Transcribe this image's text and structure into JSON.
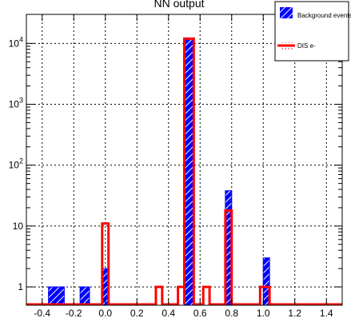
{
  "chart_data": {
    "type": "bar",
    "title": "NN output",
    "xlabel": "",
    "ylabel": "",
    "x_scale": "linear",
    "y_scale": "log",
    "xlim": [
      -0.5,
      1.5
    ],
    "ylim": [
      0.5,
      30000
    ],
    "grid": true,
    "legend_position": "top-right",
    "x_tick_labels": [
      "-0.4",
      "-0.2",
      "0.0",
      "0.2",
      "0.4",
      "0.6",
      "0.8",
      "1.0",
      "1.2",
      "1.4"
    ],
    "x_tick_values": [
      -0.4,
      -0.2,
      0.0,
      0.2,
      0.4,
      0.6,
      0.8,
      1.0,
      1.2,
      1.4
    ],
    "y_tick_values": [
      1,
      10,
      100,
      1000,
      10000
    ],
    "y_tick_labels": [
      {
        "base": "1",
        "exp": ""
      },
      {
        "base": "10",
        "exp": ""
      },
      {
        "base": "10",
        "exp": "2"
      },
      {
        "base": "10",
        "exp": "3"
      },
      {
        "base": "10",
        "exp": "4"
      }
    ],
    "series": [
      {
        "name": "Background events",
        "color": "#0000ff",
        "style": "hatched",
        "bins": [
          {
            "x0": -0.36,
            "x1": -0.26,
            "y": 1
          },
          {
            "x0": -0.16,
            "x1": -0.1,
            "y": 1
          },
          {
            "x0": -0.02,
            "x1": 0.02,
            "y": 2
          },
          {
            "x0": 0.5,
            "x1": 0.56,
            "y": 12000
          },
          {
            "x0": 0.76,
            "x1": 0.8,
            "y": 38
          },
          {
            "x0": 1.0,
            "x1": 1.04,
            "y": 3
          }
        ]
      },
      {
        "name": "DIS e-",
        "color": "#ff0000",
        "style": "outline",
        "bins": [
          {
            "x0": -0.02,
            "x1": 0.02,
            "y": 11
          },
          {
            "x0": 0.32,
            "x1": 0.36,
            "y": 1
          },
          {
            "x0": 0.46,
            "x1": 0.5,
            "y": 1
          },
          {
            "x0": 0.5,
            "x1": 0.56,
            "y": 12000
          },
          {
            "x0": 0.62,
            "x1": 0.66,
            "y": 1
          },
          {
            "x0": 0.76,
            "x1": 0.8,
            "y": 18
          },
          {
            "x0": 0.98,
            "x1": 1.04,
            "y": 1
          }
        ]
      }
    ]
  }
}
